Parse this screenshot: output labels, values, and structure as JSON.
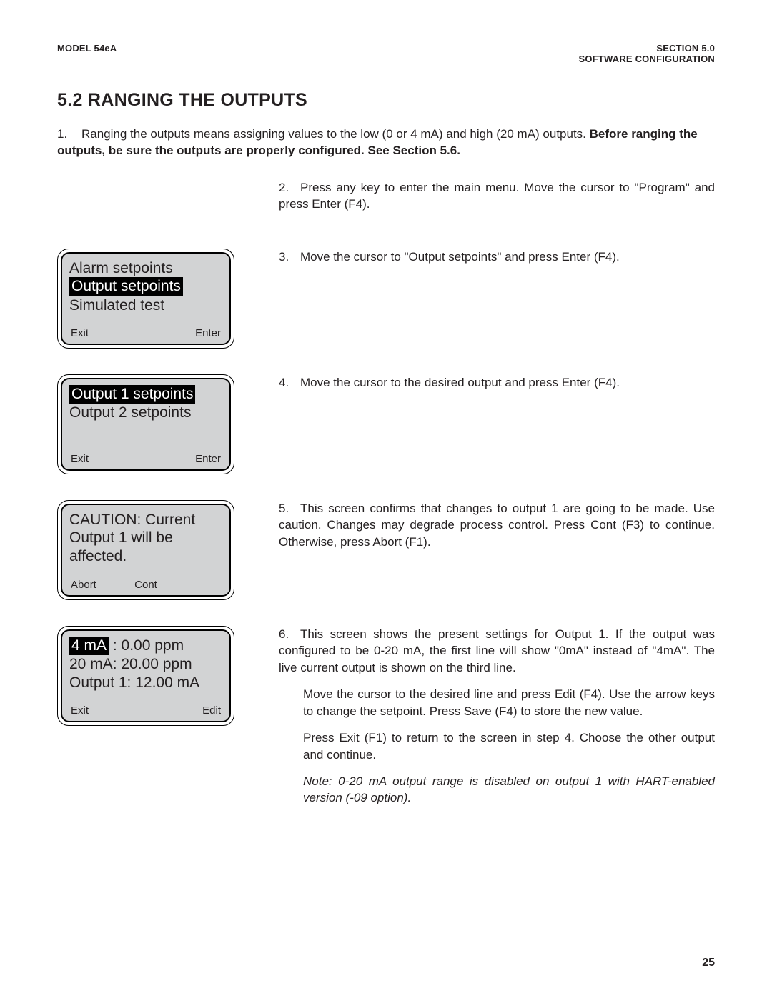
{
  "header": {
    "left": "MODEL 54eA",
    "right_line1": "SECTION 5.0",
    "right_line2": "SOFTWARE CONFIGURATION"
  },
  "title": "5.2  RANGING THE OUTPUTS",
  "intro": {
    "num": "1.",
    "text_a": "Ranging the outputs means assigning values to the low (0 or 4 mA) and high (20 mA) outputs. ",
    "text_bold": "Before ranging the outputs, be sure the outputs are properly configured. See Section 5.6."
  },
  "steps": {
    "s2": {
      "num": "2.",
      "text": "Press any key to enter the main menu. Move the cursor to \"Program\" and press Enter (F4)."
    },
    "s3": {
      "num": "3.",
      "text": "Move the cursor to \"Output setpoints\" and press Enter (F4)."
    },
    "s4": {
      "num": "4.",
      "text": "Move the cursor to the desired output and press Enter (F4)."
    },
    "s5": {
      "num": "5.",
      "text": "This screen confirms that changes to output 1 are going to be made. Use caution. Changes may degrade process control. Press Cont (F3) to continue. Otherwise, press Abort (F1)."
    },
    "s6": {
      "num": "6.",
      "p1": "This screen shows the present settings for Output 1. If the output was configured to be 0-20 mA, the first line will show \"0mA\" instead of \"4mA\". The live current output is shown on the third line.",
      "p2": "Move the cursor to the desired line and press Edit (F4). Use the arrow keys to change the setpoint. Press Save (F4) to store the new value.",
      "p3": "Press Exit (F1) to return to the screen in step 4. Choose the other output and continue.",
      "note": "Note: 0-20 mA output range is disabled on output 1 with HART-enabled version (-09 option)."
    }
  },
  "lcds": {
    "l3": {
      "line1": "Alarm setpoints",
      "line2_hl": "Output setpoints",
      "line3": "Simulated test",
      "sk_left": "Exit",
      "sk_right": "Enter"
    },
    "l4": {
      "line1_hl": "Output 1 setpoints",
      "line2": "Output 2 setpoints",
      "sk_left": "Exit",
      "sk_right": "Enter"
    },
    "l5": {
      "line1": "CAUTION: Current",
      "line2": "Output 1 will be",
      "line3": "affected.",
      "sk_left": "Abort",
      "sk_mid": "Cont"
    },
    "l6": {
      "line1_hl": "4 mA",
      "line1_rest": " :  0.00 ppm",
      "line2": "20 mA:  20.00 ppm",
      "line3": "Output 1:  12.00 mA",
      "sk_left": "Exit",
      "sk_right": "Edit"
    }
  },
  "page_number": "25"
}
